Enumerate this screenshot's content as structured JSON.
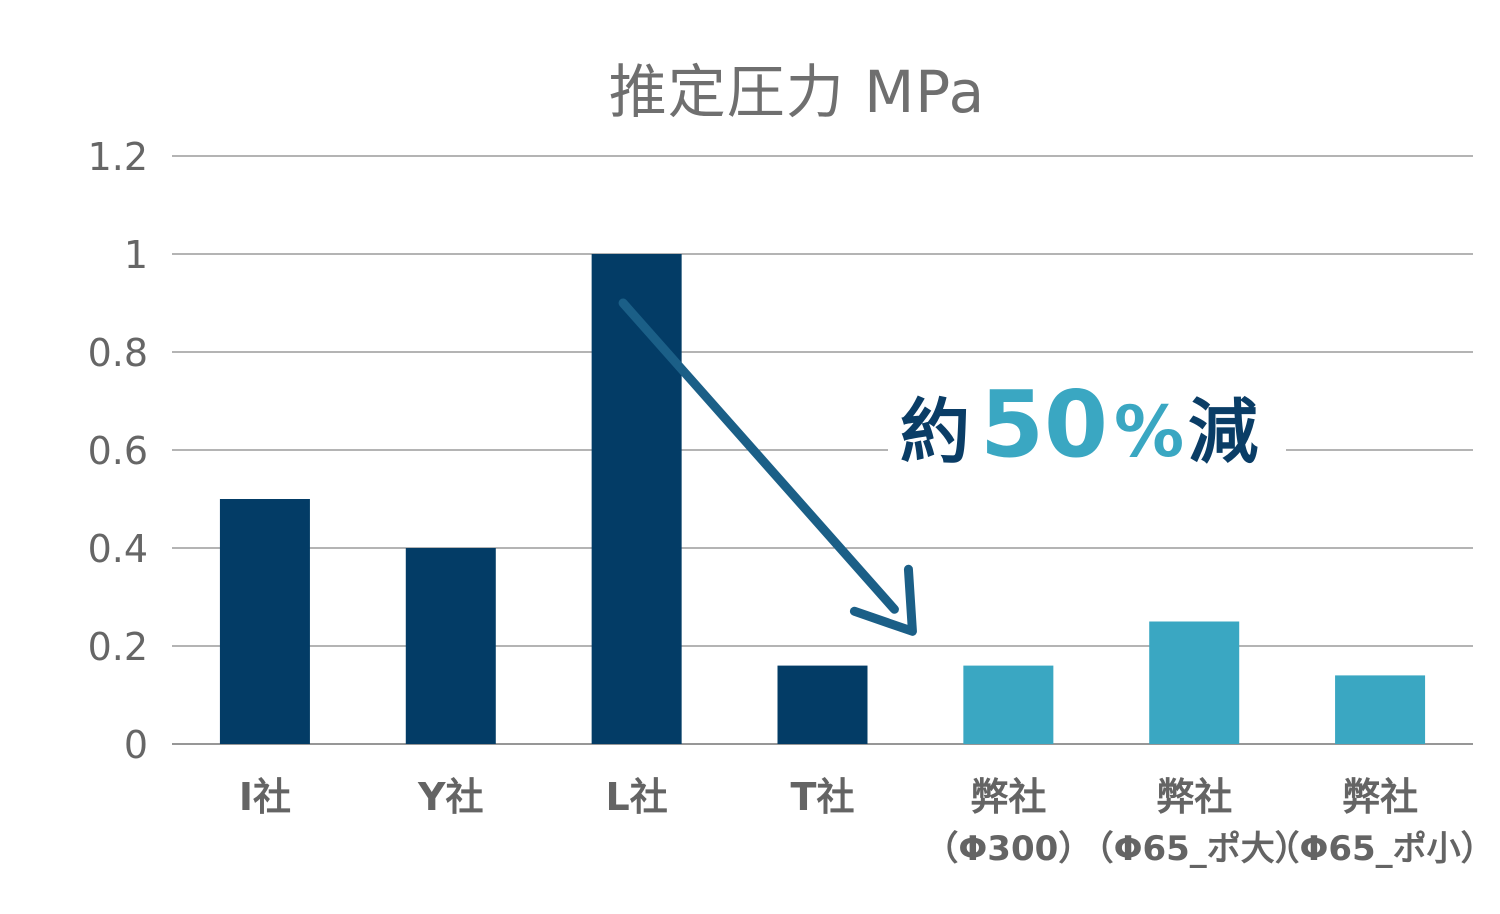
{
  "chart_data": {
    "type": "bar",
    "title": "推定圧力 MPa",
    "categories": [
      {
        "label": "I社",
        "sub": ""
      },
      {
        "label": "Y社",
        "sub": ""
      },
      {
        "label": "L社",
        "sub": ""
      },
      {
        "label": "T社",
        "sub": ""
      },
      {
        "label": "弊社",
        "sub": "（Φ300）"
      },
      {
        "label": "弊社",
        "sub": "（Φ65_ポ大）"
      },
      {
        "label": "弊社",
        "sub": "（Φ65_ポ小）"
      }
    ],
    "values": [
      0.5,
      0.4,
      1.0,
      0.16,
      0.16,
      0.25,
      0.14
    ],
    "bar_colors": [
      "#033c66",
      "#033c66",
      "#033c66",
      "#033c66",
      "#3aa7c2",
      "#3aa7c2",
      "#3aa7c2"
    ],
    "ylim": [
      0,
      1.2
    ],
    "yticks": [
      "0",
      "0.2",
      "0.4",
      "0.6",
      "0.8",
      "1",
      "1.2"
    ],
    "ytick_values": [
      0,
      0.2,
      0.4,
      0.6,
      0.8,
      1.0,
      1.2
    ],
    "grid": true,
    "legend": "none",
    "annotation": {
      "prefix": "約",
      "number": "50",
      "percent": "%",
      "suffix": "減",
      "arrow_from_value": 0.9,
      "arrow_to_value": 0.23,
      "arrow_from_category_offset": 2.4,
      "arrow_to_category_offset": 4.0,
      "dark_color": "#0a3d66",
      "accent_color": "#3aa7c2",
      "arrow_color": "#1b5f87"
    }
  }
}
